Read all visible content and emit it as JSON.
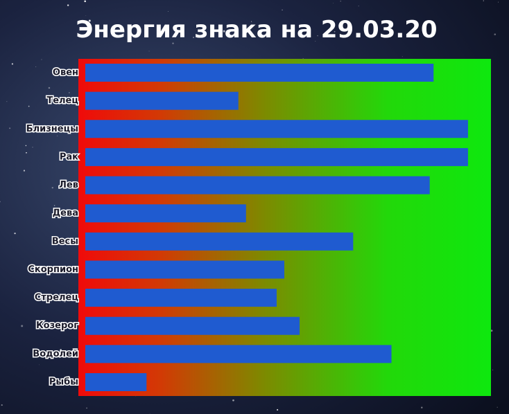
{
  "chart_data": {
    "type": "barh",
    "title": "Энергия знака на 29.03.20",
    "categories": [
      "Овен",
      "Телец",
      "Близнецы",
      "Рак",
      "Лев",
      "Дева",
      "Весы",
      "Скорпион",
      "Стрелец",
      "Козерог",
      "Водолей",
      "Рыбы"
    ],
    "values": [
      91,
      40,
      100,
      100,
      90,
      42,
      70,
      52,
      50,
      56,
      80,
      16
    ],
    "color": "#1f5bd0",
    "xlim": [
      0,
      106
    ]
  }
}
